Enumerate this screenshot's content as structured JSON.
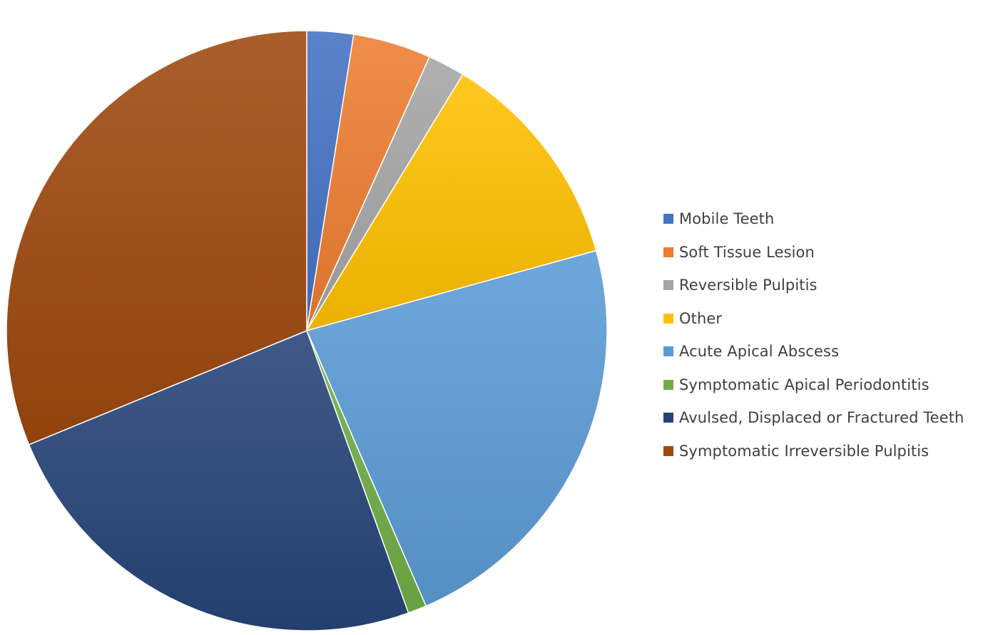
{
  "chart_data": {
    "type": "pie",
    "title": "",
    "legend_position": "right",
    "slices": [
      {
        "label": "Mobile Teeth",
        "value": 2.5,
        "color": "#4472C4"
      },
      {
        "label": "Soft Tissue Lesion",
        "value": 4.2,
        "color": "#ED7D31"
      },
      {
        "label": "Reversible Pulpitis",
        "value": 2.0,
        "color": "#A5A5A5"
      },
      {
        "label": "Other",
        "value": 12.0,
        "color": "#FFC000"
      },
      {
        "label": "Acute Apical Abscess",
        "value": 22.8,
        "color": "#5B9BD5"
      },
      {
        "label": "Symptomatic Apical Periodontitis",
        "value": 1.0,
        "color": "#70AD47"
      },
      {
        "label": "Avulsed, Displaced or Fractured Teeth",
        "value": 24.3,
        "color": "#264478"
      },
      {
        "label": "Symptomatic Irreversible Pulpitis",
        "value": 31.2,
        "color": "#9E480E"
      }
    ]
  }
}
